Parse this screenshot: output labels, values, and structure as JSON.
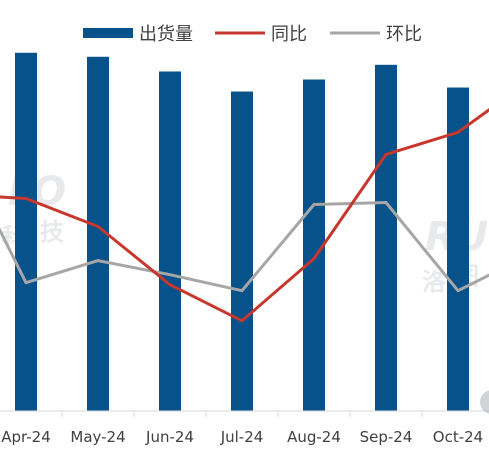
{
  "chart_data": {
    "type": "bar",
    "categories": [
      "Apr-24",
      "May-24",
      "Jun-24",
      "Jul-24",
      "Aug-24",
      "Sep-24",
      "Oct-24"
    ],
    "legend_position": "top",
    "grid": false,
    "series": [
      {
        "name": "出货量",
        "type": "bar",
        "axis": "left",
        "color": "#07528a",
        "values": [
          268,
          265,
          254,
          239,
          248,
          259,
          242
        ]
      },
      {
        "name": "同比",
        "type": "line",
        "axis": "right",
        "color": "#c8372d",
        "values": [
          0.6,
          -0.8,
          -3.7,
          -5.5,
          -2.4,
          2.8,
          3.9
        ]
      },
      {
        "name": "环比",
        "type": "line",
        "axis": "right",
        "color": "#a6a6a6",
        "values": [
          -3.6,
          -2.5,
          -3.2,
          -4.0,
          0.3,
          0.4,
          -4.0
        ]
      }
    ],
    "left_axis": {
      "ylim": [
        0,
        300
      ]
    },
    "right_axis": {
      "ylim": [
        -10,
        10
      ]
    },
    "edge_values": {
      "同比_before": 0.8,
      "同比_after": 6.5,
      "环比_before": 3.6,
      "环比_after": -2.2
    }
  },
  "watermarks": [
    "RUNTO",
    "洛图科技"
  ],
  "watermark_fragments": [
    "LO",
    "科",
    "技",
    "RU",
    "洛",
    "图"
  ]
}
